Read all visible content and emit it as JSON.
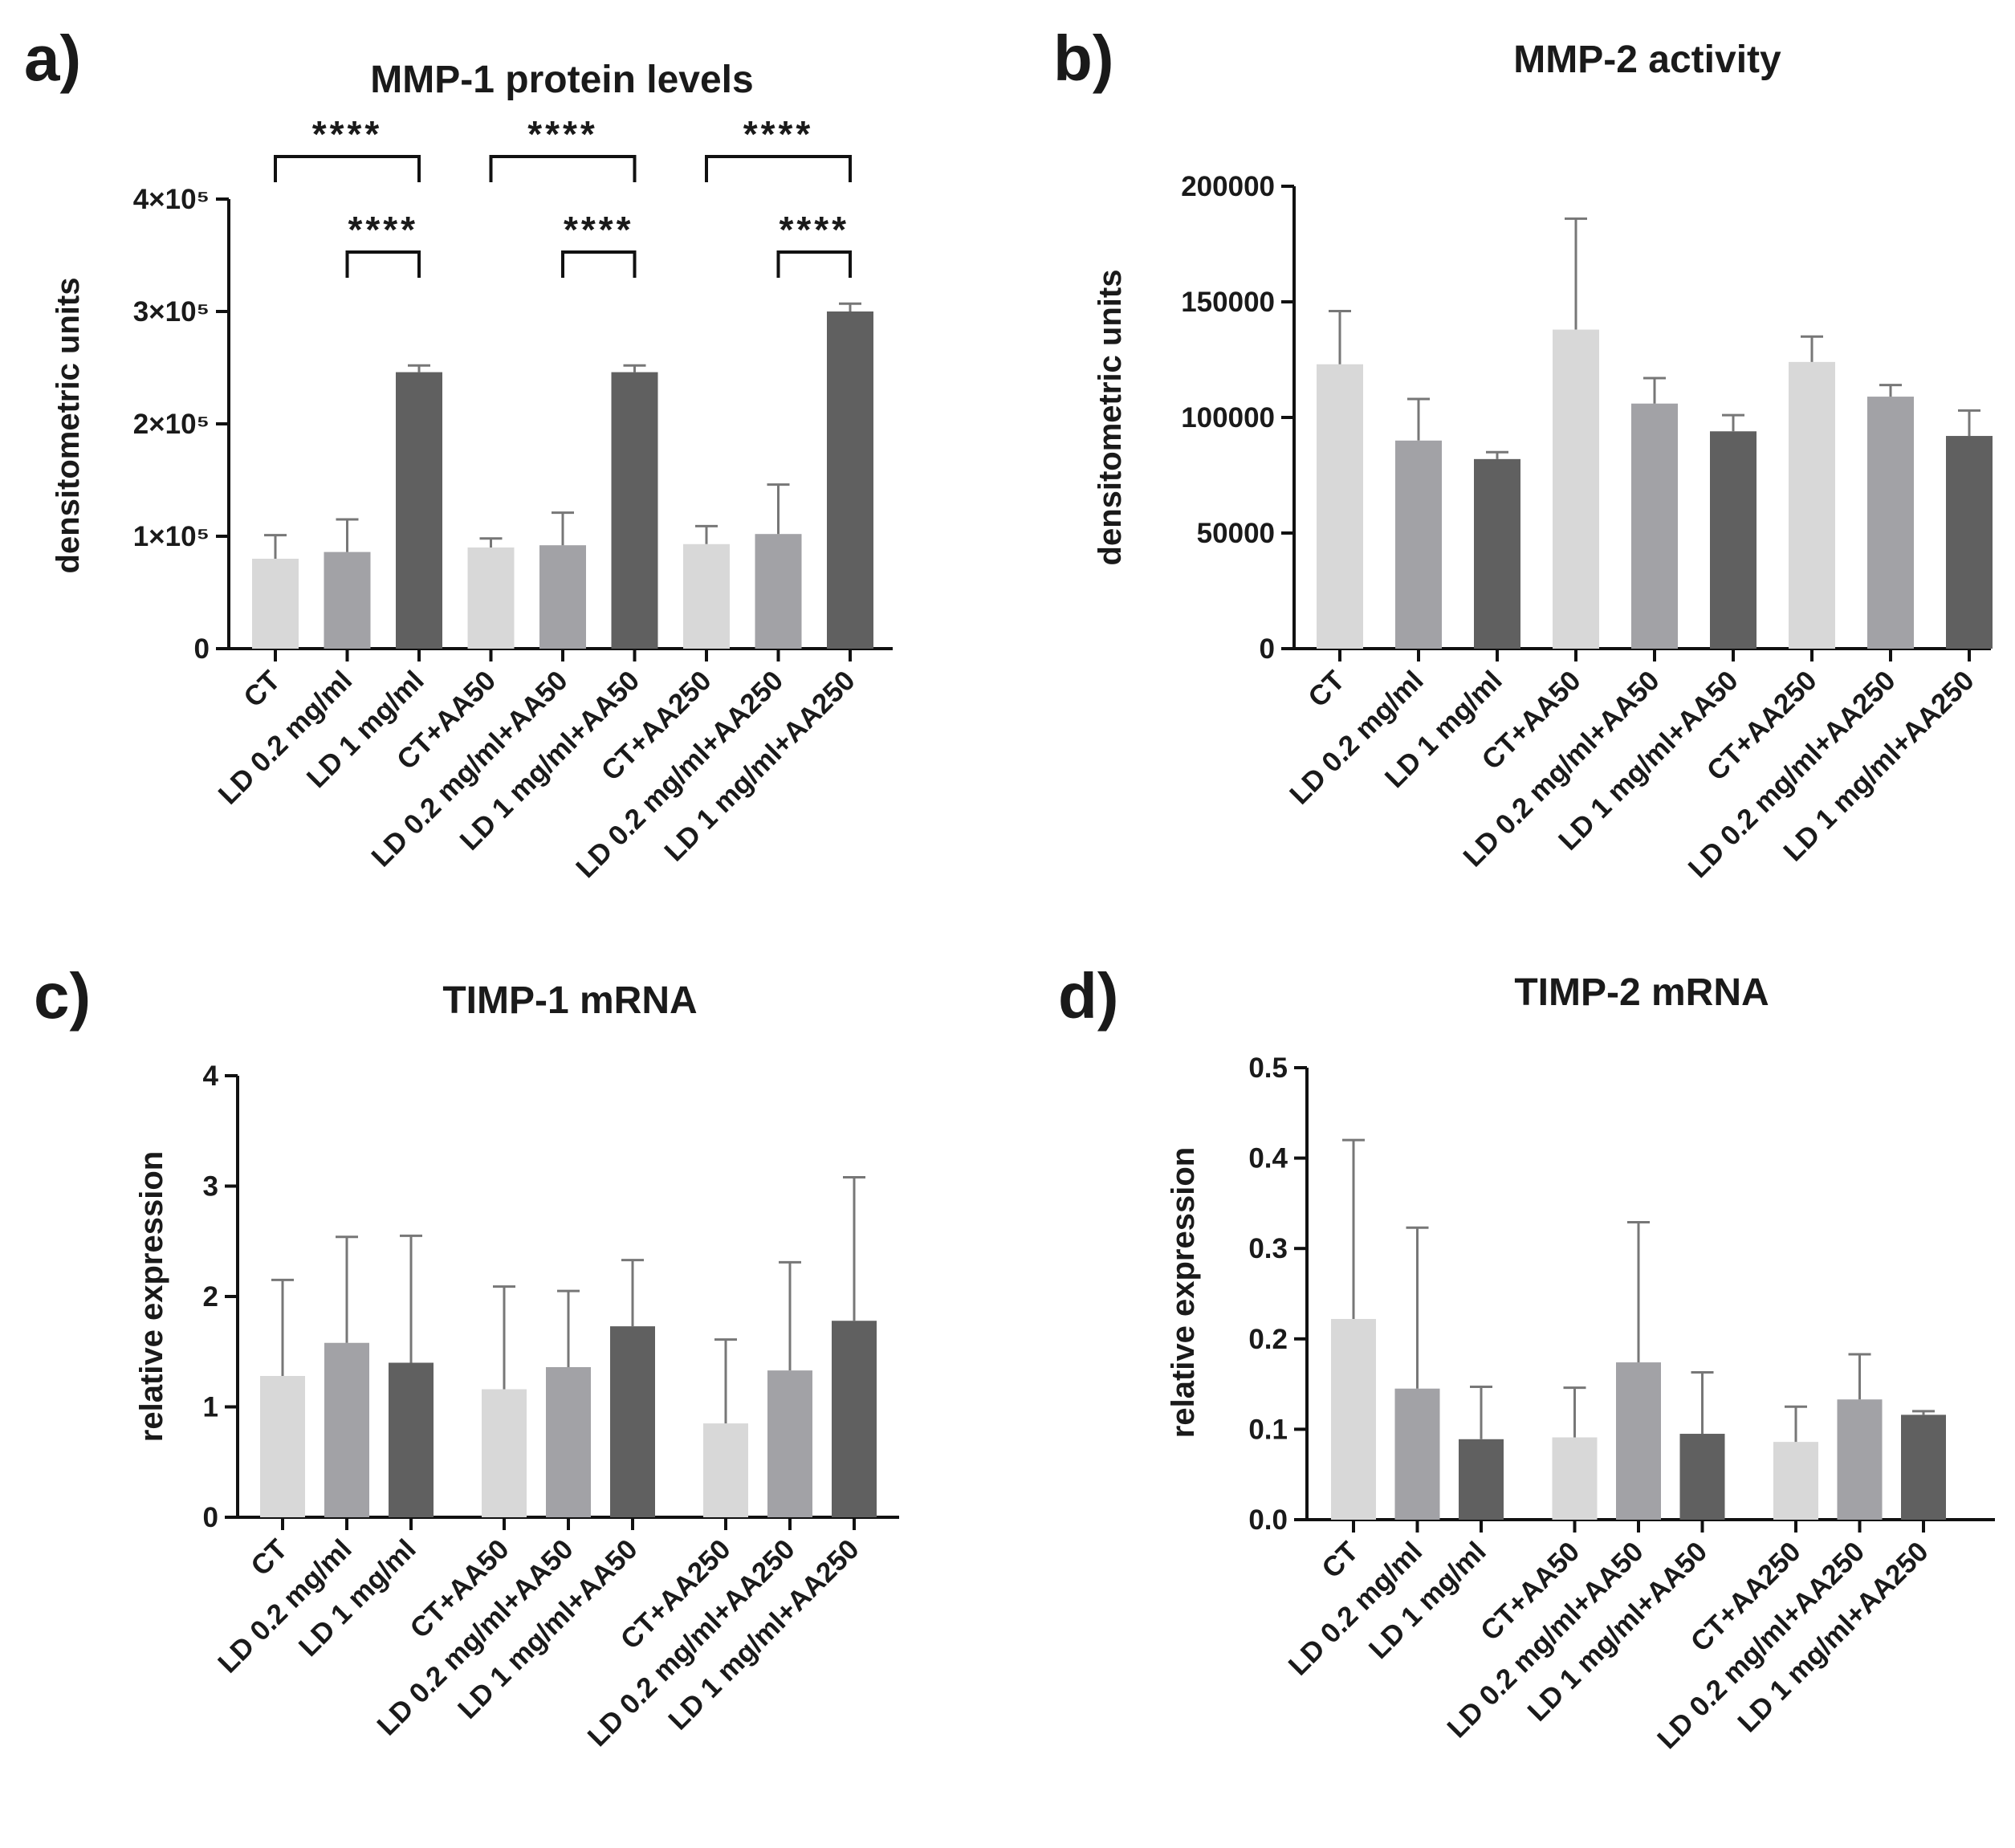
{
  "colors": {
    "light": "#d8d8d8",
    "mid": "#a2a2a6",
    "dark": "#606060"
  },
  "chart_data": [
    {
      "type": "bar",
      "panel": "a)",
      "title": "MMP-1 protein levels",
      "xlabel": "",
      "ylabel": "densitometric units",
      "ylim": [
        0,
        400000
      ],
      "yticks": [
        0,
        100000,
        200000,
        300000,
        400000
      ],
      "ytick_labels": [
        "0",
        "1×10⁵",
        "2×10⁵",
        "3×10⁵",
        "4×10⁵"
      ],
      "grouped": false,
      "categories": [
        "CT",
        "LD 0.2 mg/ml",
        "LD 1 mg/ml",
        "CT+AA50",
        "LD 0.2 mg/ml+AA50",
        "LD 1 mg/ml+AA50",
        "CT+AA250",
        "LD 0.2 mg/ml+AA250",
        "LD 1 mg/ml+AA250"
      ],
      "values": [
        80000,
        86000,
        246000,
        90000,
        92000,
        246000,
        93000,
        102000,
        300000
      ],
      "errors": [
        21000,
        29000,
        6000,
        8000,
        29000,
        6000,
        16000,
        44000,
        7000
      ],
      "shades": [
        "light",
        "mid",
        "dark",
        "light",
        "mid",
        "dark",
        "light",
        "mid",
        "dark"
      ],
      "significance": [
        {
          "from": 0,
          "to": 2,
          "label": "****",
          "level": 1
        },
        {
          "from": 1,
          "to": 2,
          "label": "****",
          "level": 0
        },
        {
          "from": 3,
          "to": 5,
          "label": "****",
          "level": 1
        },
        {
          "from": 4,
          "to": 5,
          "label": "****",
          "level": 0
        },
        {
          "from": 6,
          "to": 8,
          "label": "****",
          "level": 1
        },
        {
          "from": 7,
          "to": 8,
          "label": "****",
          "level": 0
        }
      ]
    },
    {
      "type": "bar",
      "panel": "b)",
      "title": "MMP-2 activity",
      "xlabel": "",
      "ylabel": "densitometric units",
      "ylim": [
        0,
        200000
      ],
      "yticks": [
        0,
        50000,
        100000,
        150000,
        200000
      ],
      "ytick_labels": [
        "0",
        "50000",
        "100000",
        "150000",
        "200000"
      ],
      "grouped": false,
      "categories": [
        "CT",
        "LD 0.2 mg/ml",
        "LD 1 mg/ml",
        "CT+AA50",
        "LD 0.2 mg/ml+AA50",
        "LD 1 mg/ml+AA50",
        "CT+AA250",
        "LD 0.2 mg/ml+AA250",
        "LD 1 mg/ml+AA250"
      ],
      "values": [
        123000,
        90000,
        82000,
        138000,
        106000,
        94000,
        124000,
        109000,
        92000
      ],
      "errors": [
        23000,
        18000,
        3000,
        48000,
        11000,
        7000,
        11000,
        5000,
        11000
      ],
      "shades": [
        "light",
        "mid",
        "dark",
        "light",
        "mid",
        "dark",
        "light",
        "mid",
        "dark"
      ],
      "significance": []
    },
    {
      "type": "bar",
      "panel": "c)",
      "title": "TIMP-1 mRNA",
      "xlabel": "",
      "ylabel": "relative expression",
      "ylim": [
        0,
        4
      ],
      "yticks": [
        0,
        1,
        2,
        3,
        4
      ],
      "ytick_labels": [
        "0",
        "1",
        "2",
        "3",
        "4"
      ],
      "grouped": true,
      "categories": [
        "CT",
        "LD 0.2 mg/ml",
        "LD 1 mg/ml",
        "CT+AA50",
        "LD 0.2 mg/ml+AA50",
        "LD 1 mg/ml+AA50",
        "CT+AA250",
        "LD 0.2 mg/ml+AA250",
        "LD 1 mg/ml+AA250"
      ],
      "values": [
        1.28,
        1.58,
        1.4,
        1.16,
        1.36,
        1.73,
        0.85,
        1.33,
        1.78
      ],
      "errors": [
        0.87,
        0.96,
        1.15,
        0.93,
        0.69,
        0.6,
        0.76,
        0.98,
        1.3
      ],
      "shades": [
        "light",
        "mid",
        "dark",
        "light",
        "mid",
        "dark",
        "light",
        "mid",
        "dark"
      ],
      "significance": []
    },
    {
      "type": "bar",
      "panel": "d)",
      "title": "TIMP-2 mRNA",
      "xlabel": "",
      "ylabel": "relative expression",
      "ylim": [
        0,
        0.5
      ],
      "yticks": [
        0,
        0.1,
        0.2,
        0.3,
        0.4,
        0.5
      ],
      "ytick_labels": [
        "0.0",
        "0.1",
        "0.2",
        "0.3",
        "0.4",
        "0.5"
      ],
      "grouped": true,
      "categories": [
        "CT",
        "LD 0.2 mg/ml",
        "LD 1 mg/ml",
        "CT+AA50",
        "LD 0.2 mg/ml+AA50",
        "LD 1 mg/ml+AA50",
        "CT+AA250",
        "LD 0.2 mg/ml+AA250",
        "LD 1 mg/ml+AA250"
      ],
      "values": [
        0.222,
        0.145,
        0.089,
        0.091,
        0.174,
        0.095,
        0.086,
        0.133,
        0.116
      ],
      "errors": [
        0.198,
        0.178,
        0.058,
        0.055,
        0.155,
        0.068,
        0.039,
        0.05,
        0.004
      ],
      "shades": [
        "light",
        "mid",
        "dark",
        "light",
        "mid",
        "dark",
        "light",
        "mid",
        "dark"
      ],
      "significance": []
    }
  ]
}
